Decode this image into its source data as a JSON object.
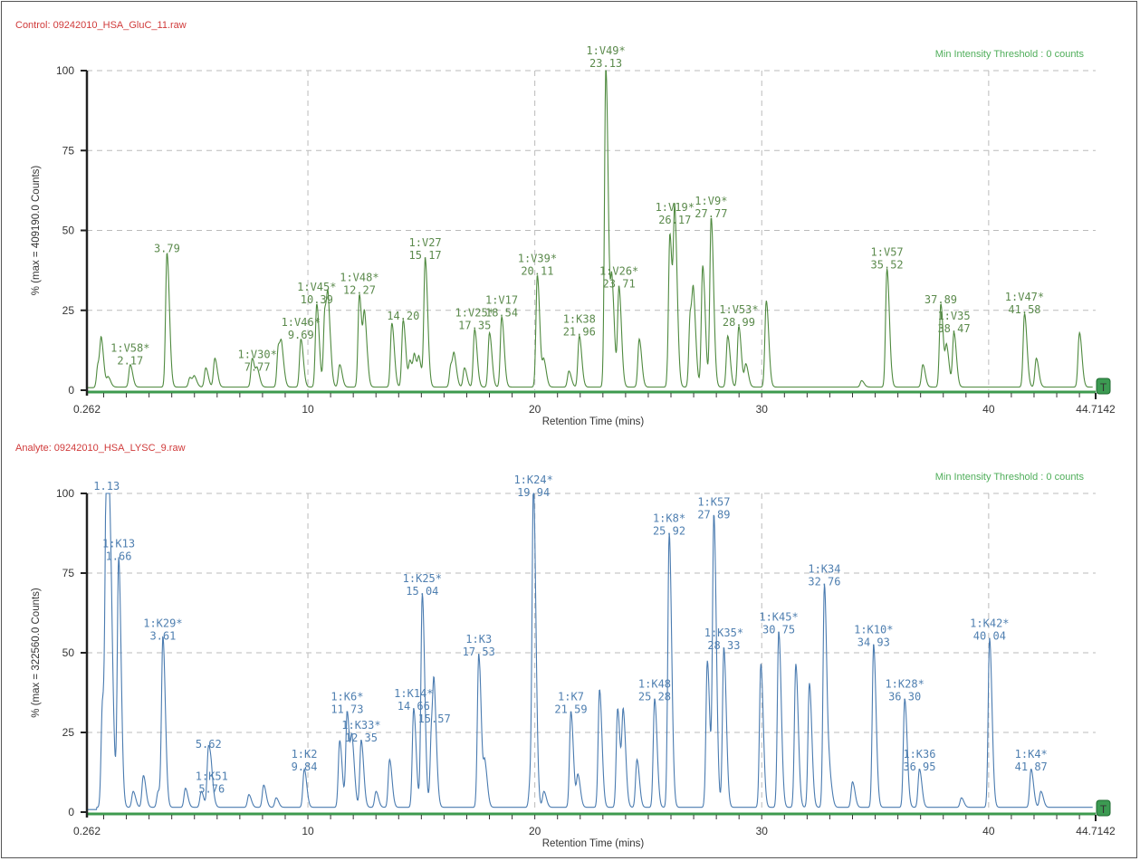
{
  "chart_data": [
    {
      "type": "line",
      "title": "Control: 09242010_HSA_GluC_11.raw",
      "threshold_note": "Min Intensity Threshold : 0 counts",
      "ylabel": "% (max = 409190.0 Counts)",
      "xlabel": "Retention Time (mins)",
      "xlim": [
        0.262,
        44.7142
      ],
      "ylim": [
        0,
        100
      ],
      "xticks": [
        "0.262",
        "10",
        "20",
        "30",
        "40",
        "44.7142"
      ],
      "yticks": [
        "0",
        "25",
        "50",
        "75",
        "100"
      ],
      "grid": true,
      "color": "#4f8a3f",
      "label_color": "#5b8a4c",
      "baseline": 1,
      "peaks": [
        {
          "rt": 0.75,
          "intensity": 7
        },
        {
          "rt": 0.9,
          "intensity": 13
        },
        {
          "rt": 1.2,
          "intensity": 3
        },
        {
          "rt": 2.17,
          "intensity": 7,
          "name": "1:V58*",
          "label": "2.17"
        },
        {
          "rt": 3.79,
          "intensity": 42,
          "label": "3.79"
        },
        {
          "rt": 4.8,
          "intensity": 3
        },
        {
          "rt": 5.0,
          "intensity": 3
        },
        {
          "rt": 5.5,
          "intensity": 6
        },
        {
          "rt": 5.9,
          "intensity": 9
        },
        {
          "rt": 7.55,
          "intensity": 9
        },
        {
          "rt": 7.77,
          "intensity": 5,
          "name": "1:V30*",
          "label": "7.77"
        },
        {
          "rt": 8.7,
          "intensity": 13
        },
        {
          "rt": 8.85,
          "intensity": 9
        },
        {
          "rt": 9.69,
          "intensity": 15,
          "name": "1:V46*",
          "label": "9.69"
        },
        {
          "rt": 10.39,
          "intensity": 26,
          "name": "1:V45*",
          "label": "10.39"
        },
        {
          "rt": 10.75,
          "intensity": 24
        },
        {
          "rt": 10.9,
          "intensity": 20
        },
        {
          "rt": 11.4,
          "intensity": 7
        },
        {
          "rt": 12.27,
          "intensity": 29,
          "name": "1:V48*",
          "label": "12.27"
        },
        {
          "rt": 12.5,
          "intensity": 21
        },
        {
          "rt": 13.7,
          "intensity": 20
        },
        {
          "rt": 14.2,
          "intensity": 21,
          "label": "14.20"
        },
        {
          "rt": 14.5,
          "intensity": 8
        },
        {
          "rt": 14.7,
          "intensity": 9
        },
        {
          "rt": 14.9,
          "intensity": 8
        },
        {
          "rt": 15.17,
          "intensity": 40,
          "name": "1:V27",
          "label": "15.17"
        },
        {
          "rt": 16.3,
          "intensity": 7
        },
        {
          "rt": 16.45,
          "intensity": 8
        },
        {
          "rt": 16.9,
          "intensity": 6
        },
        {
          "rt": 17.35,
          "intensity": 18,
          "name": "1:V25*",
          "label": "17.35"
        },
        {
          "rt": 18.0,
          "intensity": 17
        },
        {
          "rt": 18.54,
          "intensity": 22,
          "name": "1:V17",
          "label": "18.54"
        },
        {
          "rt": 20.11,
          "intensity": 35,
          "name": "1:V39*",
          "label": "20.11"
        },
        {
          "rt": 20.4,
          "intensity": 8
        },
        {
          "rt": 21.5,
          "intensity": 5
        },
        {
          "rt": 21.96,
          "intensity": 16,
          "name": "1:K38",
          "label": "21.96"
        },
        {
          "rt": 23.13,
          "intensity": 100,
          "name": "1:V49*",
          "label": "23.13"
        },
        {
          "rt": 23.4,
          "intensity": 31
        },
        {
          "rt": 23.71,
          "intensity": 31,
          "name": "1:V26*",
          "label": "23.71"
        },
        {
          "rt": 24.6,
          "intensity": 15
        },
        {
          "rt": 25.95,
          "intensity": 48
        },
        {
          "rt": 26.17,
          "intensity": 51,
          "name": "1:V19*",
          "label": "26.17"
        },
        {
          "rt": 26.85,
          "intensity": 23
        },
        {
          "rt": 27.0,
          "intensity": 22
        },
        {
          "rt": 27.4,
          "intensity": 38
        },
        {
          "rt": 27.77,
          "intensity": 53,
          "name": "1:V9*",
          "label": "27.77"
        },
        {
          "rt": 28.5,
          "intensity": 16
        },
        {
          "rt": 28.99,
          "intensity": 19,
          "name": "1:V53*",
          "label": "28.99"
        },
        {
          "rt": 29.3,
          "intensity": 7
        },
        {
          "rt": 30.2,
          "intensity": 27
        },
        {
          "rt": 34.4,
          "intensity": 2
        },
        {
          "rt": 35.52,
          "intensity": 37,
          "name": "1:V57",
          "label": "35.52"
        },
        {
          "rt": 37.1,
          "intensity": 7
        },
        {
          "rt": 37.89,
          "intensity": 26,
          "label": "37.89"
        },
        {
          "rt": 38.15,
          "intensity": 12
        },
        {
          "rt": 38.47,
          "intensity": 17,
          "name": "1:V35",
          "label": "38.47"
        },
        {
          "rt": 41.58,
          "intensity": 23,
          "name": "1:V47*",
          "label": "41.58"
        },
        {
          "rt": 42.1,
          "intensity": 9
        },
        {
          "rt": 44.0,
          "intensity": 17
        }
      ]
    },
    {
      "type": "line",
      "title": "Analyte: 09242010_HSA_LYSC_9.raw",
      "threshold_note": "Min Intensity Threshold : 0 counts",
      "ylabel": "% (max = 322560.0 Counts)",
      "xlabel": "Retention Time (mins)",
      "xlim": [
        0.262,
        44.7142
      ],
      "ylim": [
        0,
        100
      ],
      "xticks": [
        "0.262",
        "10",
        "20",
        "30",
        "40",
        "44.7142"
      ],
      "yticks": [
        "0",
        "25",
        "50",
        "75",
        "100"
      ],
      "grid": true,
      "color": "#4a7bb0",
      "label_color": "#4f7fb0",
      "baseline": 1.5,
      "peaks": [
        {
          "rt": 0.95,
          "intensity": 33
        },
        {
          "rt": 1.13,
          "intensity": 100,
          "label": "1.13"
        },
        {
          "rt": 1.22,
          "intensity": 45
        },
        {
          "rt": 1.35,
          "intensity": 33
        },
        {
          "rt": 1.66,
          "intensity": 78,
          "name": "1:K13",
          "label": "1.66"
        },
        {
          "rt": 2.3,
          "intensity": 5
        },
        {
          "rt": 2.75,
          "intensity": 10
        },
        {
          "rt": 3.4,
          "intensity": 5
        },
        {
          "rt": 3.61,
          "intensity": 53,
          "name": "1:K29*",
          "label": "3.61"
        },
        {
          "rt": 4.6,
          "intensity": 6
        },
        {
          "rt": 5.3,
          "intensity": 5
        },
        {
          "rt": 5.62,
          "intensity": 19,
          "label": "5.62"
        },
        {
          "rt": 5.76,
          "intensity": 5,
          "name": "1:K51",
          "label": "5.76"
        },
        {
          "rt": 7.4,
          "intensity": 4
        },
        {
          "rt": 8.05,
          "intensity": 7
        },
        {
          "rt": 8.6,
          "intensity": 3
        },
        {
          "rt": 9.84,
          "intensity": 12,
          "name": "1:K2",
          "label": "9.84"
        },
        {
          "rt": 11.4,
          "intensity": 21
        },
        {
          "rt": 11.73,
          "intensity": 30,
          "name": "1:K6*",
          "label": "11.73"
        },
        {
          "rt": 11.95,
          "intensity": 19
        },
        {
          "rt": 12.35,
          "intensity": 21,
          "name": "1:K33*",
          "label": "12.35"
        },
        {
          "rt": 13.0,
          "intensity": 5
        },
        {
          "rt": 13.6,
          "intensity": 15
        },
        {
          "rt": 14.66,
          "intensity": 31,
          "name": "1:K14*",
          "label": "14.66"
        },
        {
          "rt": 15.04,
          "intensity": 67,
          "name": "1:K25*",
          "label": "15.04"
        },
        {
          "rt": 15.45,
          "intensity": 24
        },
        {
          "rt": 15.57,
          "intensity": 27,
          "label": "15.57"
        },
        {
          "rt": 17.53,
          "intensity": 48,
          "name": "1:K3",
          "label": "17.53"
        },
        {
          "rt": 17.8,
          "intensity": 13
        },
        {
          "rt": 19.8,
          "intensity": 8
        },
        {
          "rt": 19.94,
          "intensity": 98,
          "name": "1:K24*",
          "label": "19.94"
        },
        {
          "rt": 20.4,
          "intensity": 5
        },
        {
          "rt": 21.59,
          "intensity": 30,
          "name": "1:K7",
          "label": "21.59"
        },
        {
          "rt": 21.9,
          "intensity": 10
        },
        {
          "rt": 22.85,
          "intensity": 37
        },
        {
          "rt": 23.65,
          "intensity": 31
        },
        {
          "rt": 23.9,
          "intensity": 29
        },
        {
          "rt": 24.5,
          "intensity": 15
        },
        {
          "rt": 25.28,
          "intensity": 34,
          "name": "1:K48",
          "label": "25.28"
        },
        {
          "rt": 25.92,
          "intensity": 86,
          "name": "1:K8*",
          "label": "25.92"
        },
        {
          "rt": 27.6,
          "intensity": 46
        },
        {
          "rt": 27.89,
          "intensity": 91,
          "name": "1:K57",
          "label": "27.89"
        },
        {
          "rt": 28.33,
          "intensity": 50,
          "name": "1:K35*",
          "label": "28.33"
        },
        {
          "rt": 29.96,
          "intensity": 45
        },
        {
          "rt": 30.75,
          "intensity": 55,
          "name": "1:K45*",
          "label": "30.75"
        },
        {
          "rt": 31.5,
          "intensity": 45
        },
        {
          "rt": 32.1,
          "intensity": 39
        },
        {
          "rt": 32.76,
          "intensity": 70,
          "name": "1:K34",
          "label": "32.76"
        },
        {
          "rt": 33.0,
          "intensity": 8
        },
        {
          "rt": 34.0,
          "intensity": 8
        },
        {
          "rt": 34.93,
          "intensity": 51,
          "name": "1:K10*",
          "label": "34.93"
        },
        {
          "rt": 36.3,
          "intensity": 34,
          "name": "1:K28*",
          "label": "36.30"
        },
        {
          "rt": 36.95,
          "intensity": 12,
          "name": "1:K36",
          "label": "36.95"
        },
        {
          "rt": 38.8,
          "intensity": 3
        },
        {
          "rt": 40.04,
          "intensity": 53,
          "name": "1:K42*",
          "label": "40.04"
        },
        {
          "rt": 41.87,
          "intensity": 12,
          "name": "1:K4*",
          "label": "41.87"
        },
        {
          "rt": 42.3,
          "intensity": 5
        }
      ]
    }
  ],
  "trace_end_marker": "T"
}
